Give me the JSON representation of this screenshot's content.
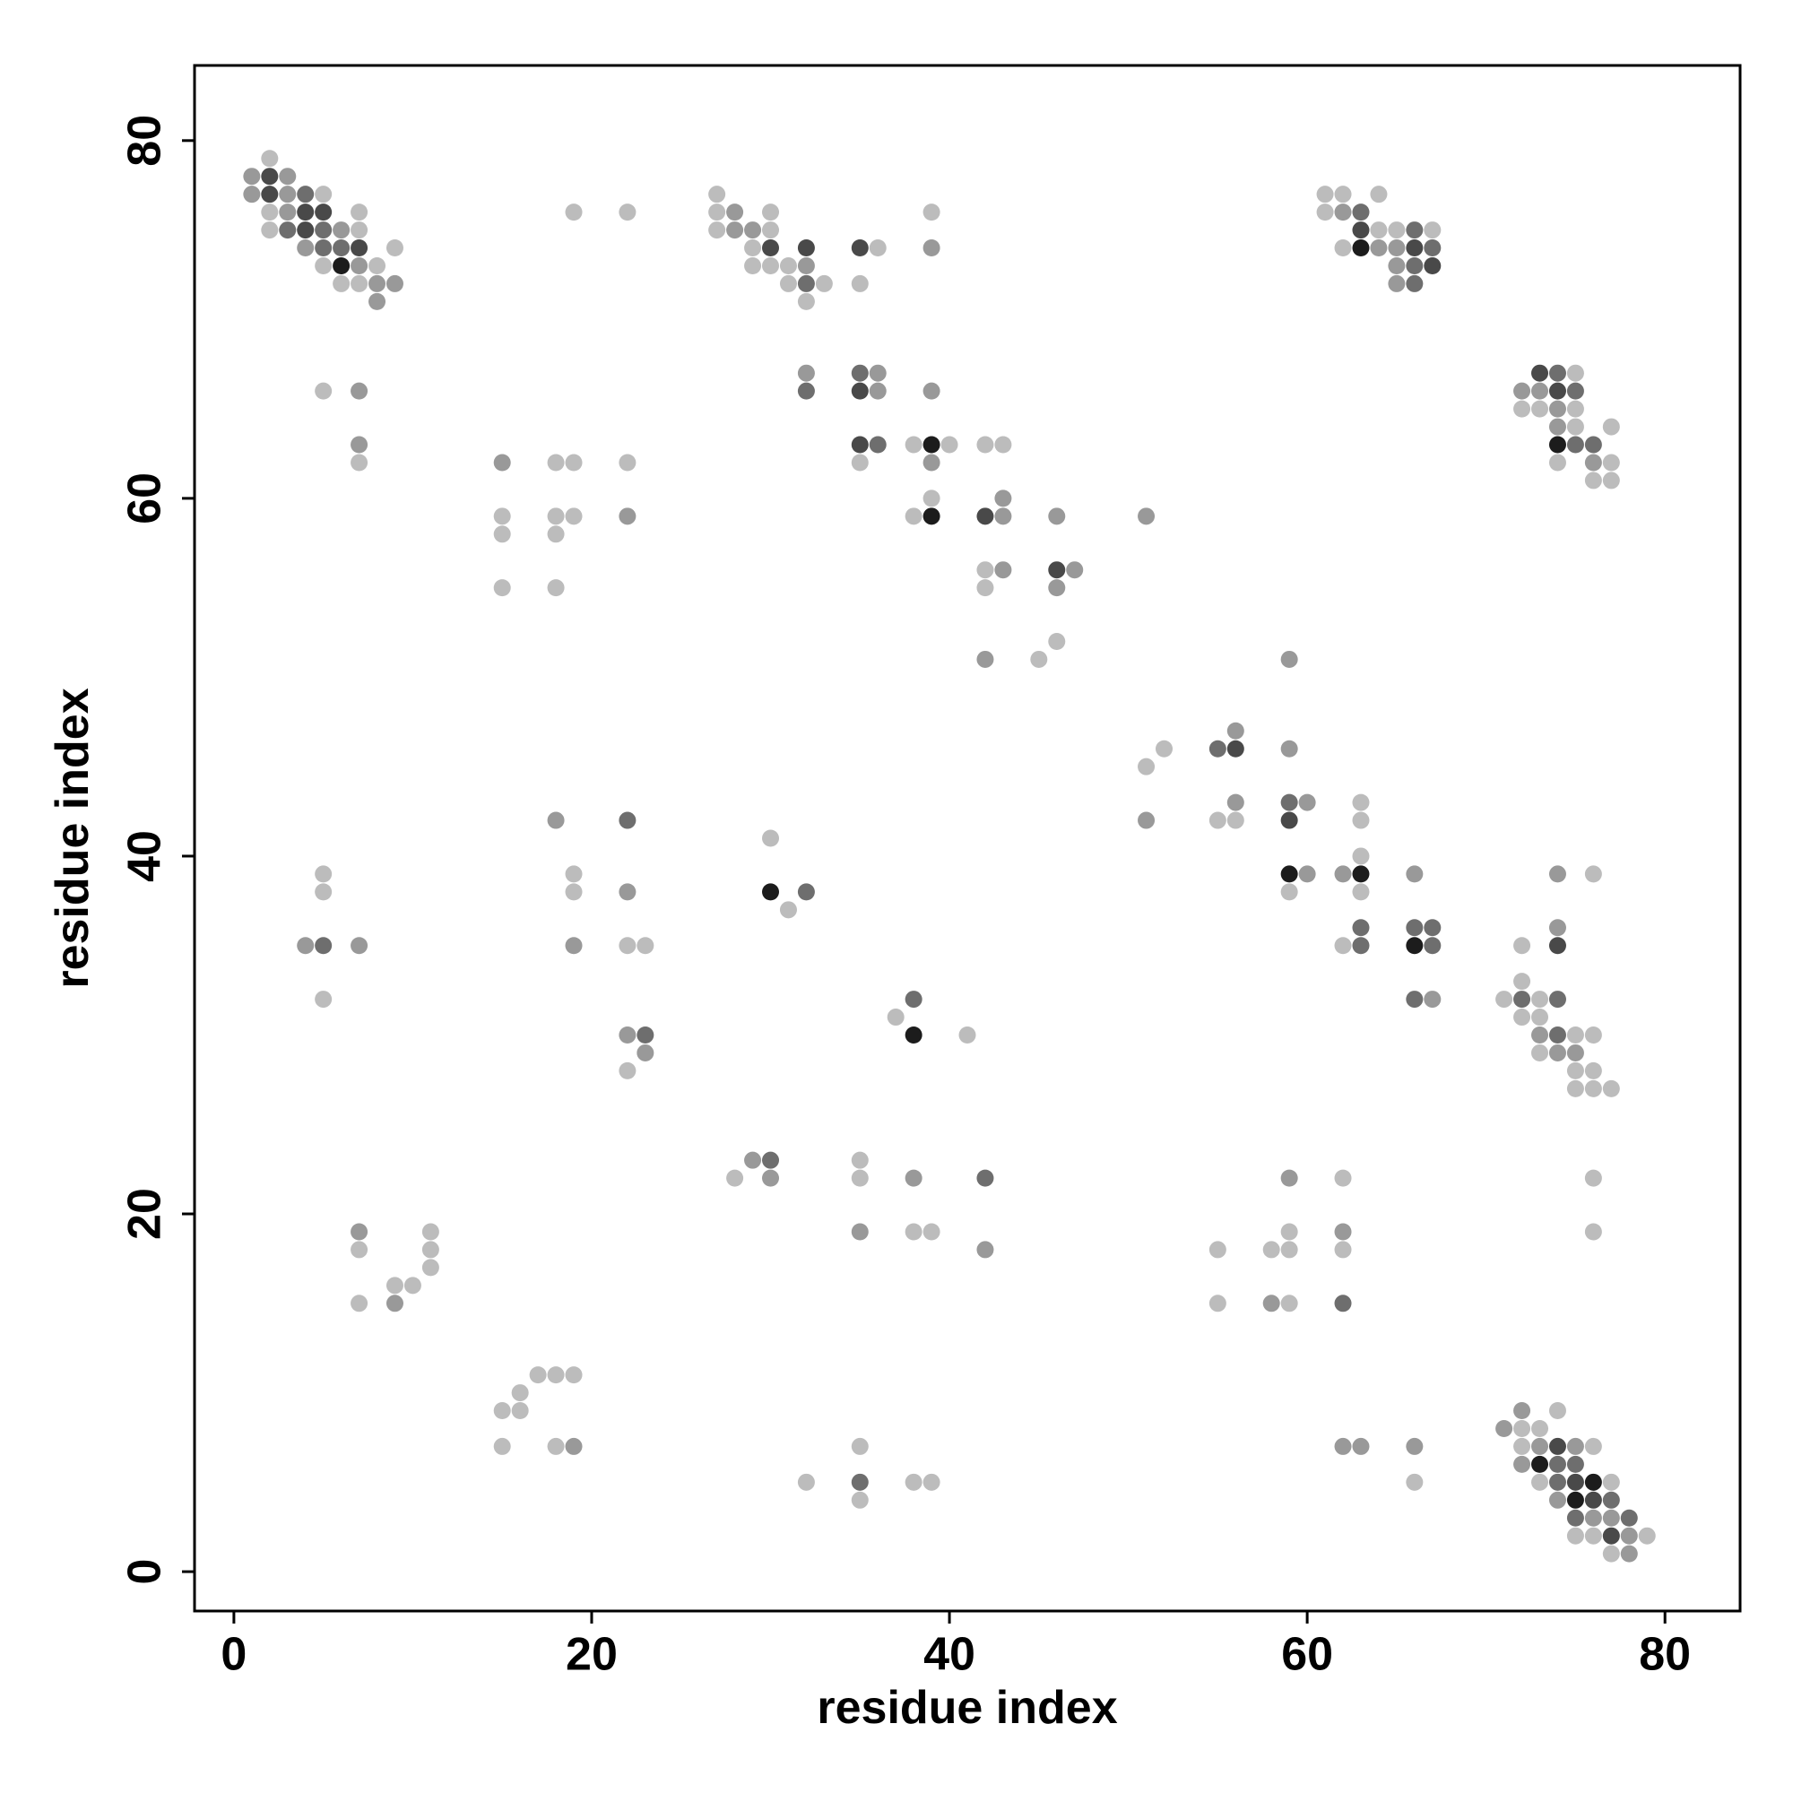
{
  "chart_data": {
    "type": "scatter",
    "xlabel": "residue index",
    "ylabel": "residue index",
    "xlim": [
      -2.2,
      84.2
    ],
    "ylim": [
      -2.2,
      84.2
    ],
    "xticks": [
      0,
      20,
      40,
      60,
      80
    ],
    "yticks": [
      0,
      20,
      40,
      60,
      80
    ],
    "grid": false,
    "series": [
      {
        "color": "#bcbcbc",
        "x": [
          2,
          5,
          27,
          61,
          62,
          64,
          2,
          7,
          19,
          22,
          27,
          30,
          39,
          61,
          2,
          7,
          27,
          30,
          64,
          65,
          67,
          9,
          29,
          36,
          62,
          5,
          8,
          29,
          30,
          31,
          6,
          7,
          31,
          33,
          35,
          32,
          75,
          5,
          72,
          73,
          75,
          75,
          77,
          38,
          40,
          42,
          43,
          7,
          18,
          19,
          22,
          35,
          74,
          77,
          76,
          77,
          39,
          15,
          18,
          19,
          38,
          15,
          18,
          42,
          15,
          18,
          42,
          46,
          45,
          52,
          51,
          63,
          55,
          56,
          63,
          30,
          63,
          5,
          19,
          76,
          5,
          19,
          59,
          63,
          31,
          22,
          23,
          62,
          72,
          72,
          5,
          71,
          73,
          37,
          72,
          73,
          41,
          75,
          76,
          73,
          22,
          75,
          76,
          75,
          76,
          77,
          35,
          28,
          35,
          62,
          76,
          11,
          38,
          39,
          59,
          76,
          7,
          11,
          55,
          58,
          59,
          62,
          11,
          9,
          10,
          7,
          55,
          59,
          17,
          18,
          19,
          16,
          15,
          16,
          74,
          72,
          73,
          15,
          18,
          35,
          72,
          76,
          32,
          38,
          39,
          66,
          73,
          77,
          35,
          75,
          76,
          79,
          77
        ],
        "y": [
          79,
          77,
          77,
          77,
          77,
          77,
          76,
          76,
          76,
          76,
          76,
          76,
          76,
          76,
          75,
          75,
          75,
          75,
          75,
          75,
          75,
          74,
          74,
          74,
          74,
          73,
          73,
          73,
          73,
          73,
          72,
          72,
          72,
          72,
          72,
          71,
          67,
          66,
          65,
          65,
          65,
          64,
          64,
          63,
          63,
          63,
          63,
          62,
          62,
          62,
          62,
          62,
          62,
          62,
          61,
          61,
          60,
          59,
          59,
          59,
          59,
          58,
          58,
          56,
          55,
          55,
          55,
          52,
          51,
          46,
          45,
          43,
          42,
          42,
          42,
          41,
          40,
          39,
          39,
          39,
          38,
          38,
          38,
          38,
          37,
          35,
          35,
          35,
          35,
          33,
          32,
          32,
          32,
          31,
          31,
          31,
          30,
          30,
          30,
          29,
          28,
          28,
          28,
          27,
          27,
          27,
          23,
          22,
          22,
          22,
          22,
          19,
          19,
          19,
          19,
          19,
          18,
          18,
          18,
          18,
          18,
          18,
          17,
          16,
          16,
          15,
          15,
          15,
          11,
          11,
          11,
          10,
          9,
          9,
          9,
          8,
          8,
          7,
          7,
          7,
          7,
          7,
          5,
          5,
          5,
          5,
          5,
          5,
          4,
          2,
          2,
          2,
          1
        ]
      },
      {
        "color": "#999999",
        "x": [
          1,
          3,
          1,
          3,
          3,
          28,
          62,
          6,
          28,
          29,
          4,
          39,
          64,
          65,
          7,
          32,
          65,
          8,
          9,
          65,
          8,
          32,
          36,
          7,
          36,
          39,
          72,
          73,
          74,
          74,
          7,
          15,
          39,
          76,
          43,
          22,
          43,
          46,
          51,
          43,
          47,
          46,
          42,
          59,
          56,
          59,
          56,
          60,
          18,
          51,
          60,
          62,
          66,
          74,
          22,
          74,
          4,
          7,
          19,
          67,
          22,
          73,
          23,
          74,
          75,
          29,
          30,
          38,
          59,
          7,
          35,
          62,
          42,
          9,
          58,
          72,
          71,
          19,
          62,
          63,
          66,
          73,
          75,
          72,
          74,
          76,
          77,
          78,
          78
        ],
        "y": [
          78,
          78,
          77,
          77,
          76,
          76,
          76,
          75,
          75,
          75,
          74,
          74,
          74,
          74,
          73,
          73,
          73,
          72,
          72,
          72,
          71,
          67,
          67,
          66,
          66,
          66,
          66,
          66,
          65,
          64,
          63,
          62,
          62,
          62,
          60,
          59,
          59,
          59,
          59,
          56,
          56,
          55,
          51,
          51,
          47,
          46,
          43,
          43,
          42,
          42,
          39,
          39,
          39,
          39,
          38,
          36,
          35,
          35,
          35,
          32,
          30,
          30,
          29,
          29,
          29,
          23,
          22,
          22,
          22,
          19,
          19,
          19,
          18,
          15,
          15,
          9,
          8,
          7,
          7,
          7,
          7,
          7,
          7,
          6,
          4,
          3,
          3,
          2,
          1
        ]
      },
      {
        "color": "#6e6e6e",
        "x": [
          4,
          63,
          3,
          5,
          66,
          5,
          6,
          67,
          66,
          32,
          66,
          35,
          74,
          32,
          75,
          36,
          75,
          76,
          55,
          59,
          22,
          32,
          63,
          66,
          67,
          5,
          63,
          67,
          38,
          66,
          72,
          74,
          23,
          74,
          30,
          42,
          62,
          74,
          75,
          35,
          74,
          77,
          75,
          78
        ],
        "y": [
          77,
          76,
          75,
          75,
          75,
          74,
          74,
          74,
          73,
          72,
          72,
          67,
          67,
          66,
          66,
          63,
          63,
          63,
          46,
          43,
          42,
          38,
          36,
          36,
          36,
          35,
          35,
          35,
          32,
          32,
          32,
          32,
          30,
          30,
          23,
          22,
          15,
          6,
          6,
          5,
          5,
          4,
          3,
          3
        ]
      },
      {
        "color": "#494949",
        "x": [
          2,
          2,
          4,
          5,
          4,
          63,
          7,
          30,
          32,
          35,
          66,
          67,
          73,
          35,
          74,
          35,
          42,
          46,
          56,
          59,
          74,
          74,
          75,
          76,
          77
        ],
        "y": [
          78,
          77,
          76,
          76,
          75,
          75,
          74,
          74,
          74,
          74,
          74,
          73,
          67,
          66,
          66,
          63,
          59,
          56,
          46,
          42,
          35,
          7,
          5,
          4,
          2
        ]
      },
      {
        "color": "#1c1c1c",
        "x": [
          63,
          6,
          39,
          74,
          39,
          59,
          63,
          30,
          66,
          38,
          73,
          76,
          75
        ],
        "y": [
          74,
          73,
          63,
          63,
          59,
          39,
          39,
          38,
          35,
          30,
          6,
          5,
          4
        ]
      }
    ]
  }
}
